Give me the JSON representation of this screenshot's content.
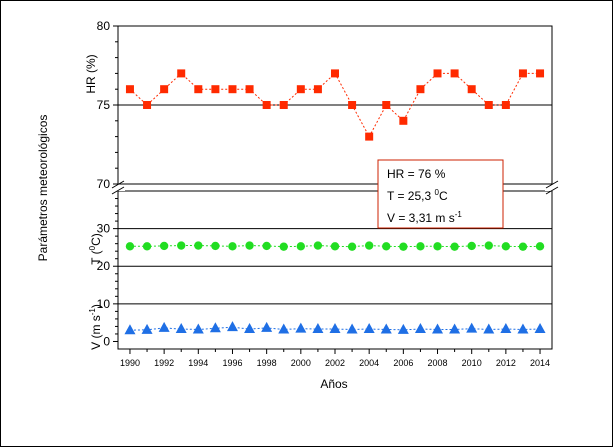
{
  "chart_data": {
    "type": "line",
    "ylabel": "Parámetros meteorológicos",
    "xlabel": "Años",
    "x": [
      1990,
      1991,
      1992,
      1993,
      1994,
      1995,
      1996,
      1997,
      1998,
      1999,
      2000,
      2001,
      2002,
      2003,
      2004,
      2005,
      2006,
      2007,
      2008,
      2009,
      2010,
      2011,
      2012,
      2013,
      2014
    ],
    "xticks": [
      "1990",
      "1992",
      "1994",
      "1996",
      "1998",
      "2000",
      "2002",
      "2004",
      "2006",
      "2008",
      "2010",
      "2012",
      "2014"
    ],
    "panels": [
      {
        "key": "hr",
        "ylabel": "HR (%)",
        "ylim": [
          70,
          80
        ],
        "yticks": [
          "70",
          "75",
          "80"
        ],
        "color": "#ff2a00",
        "marker": "square",
        "line_style": "dotted",
        "values": [
          76,
          75,
          76,
          77,
          76,
          76,
          76,
          76,
          75,
          75,
          76,
          76,
          77,
          75,
          73,
          75,
          74,
          76,
          77,
          77,
          76,
          75,
          75,
          77,
          77
        ]
      },
      {
        "key": "t",
        "ylabel_main": "T (",
        "ylabel_sup": "0",
        "ylabel_end": "C)",
        "ylim": [
          0,
          40
        ],
        "yticks": [
          "0",
          "10",
          "20",
          "30"
        ],
        "color": "#22dd22",
        "marker": "circle",
        "line_style": "dotted",
        "values": [
          25.3,
          25.3,
          25.4,
          25.5,
          25.5,
          25.4,
          25.3,
          25.5,
          25.4,
          25.2,
          25.3,
          25.5,
          25.3,
          25.2,
          25.5,
          25.3,
          25.2,
          25.3,
          25.3,
          25.2,
          25.4,
          25.5,
          25.3,
          25.2,
          25.3
        ]
      },
      {
        "key": "v",
        "ylabel_main": "V (m s",
        "ylabel_sup": "-1",
        "ylabel_end": ")",
        "color": "#1f6fe5",
        "marker": "triangle",
        "line_style": "dotted",
        "values": [
          3.0,
          3.1,
          3.6,
          3.3,
          3.2,
          3.5,
          3.8,
          3.3,
          3.6,
          3.2,
          3.4,
          3.3,
          3.3,
          3.2,
          3.3,
          3.2,
          3.1,
          3.3,
          3.2,
          3.2,
          3.4,
          3.2,
          3.3,
          3.2,
          3.3
        ]
      }
    ],
    "annotation": {
      "hr_text": "HR = 76 %",
      "t_text": "T = 25,3 ",
      "t_sup": "0",
      "t_end": "C",
      "v_text": "V = 3,31 m s",
      "v_sup": "-1"
    }
  }
}
